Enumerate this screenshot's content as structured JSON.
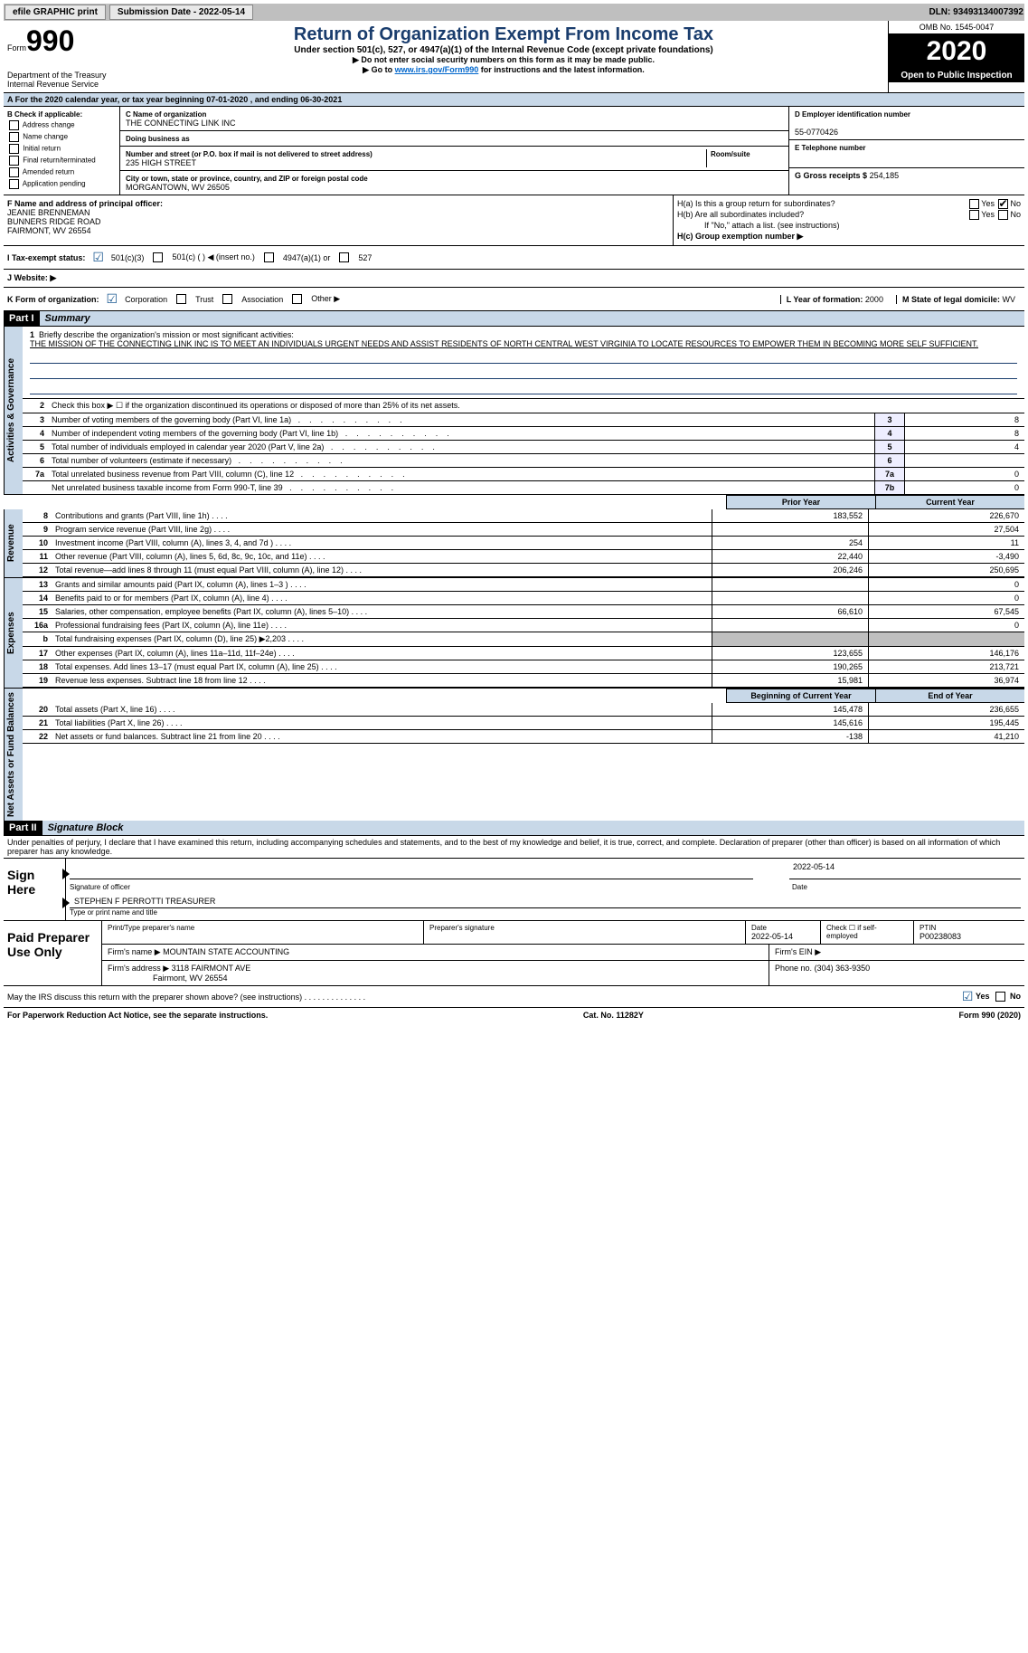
{
  "topbar": {
    "efile": "efile GRAPHIC print",
    "submission_label": "Submission Date - 2022-05-14",
    "dln_label": "DLN: 93493134007392"
  },
  "header": {
    "form_prefix": "Form",
    "form_number": "990",
    "title": "Return of Organization Exempt From Income Tax",
    "subtitle": "Under section 501(c), 527, or 4947(a)(1) of the Internal Revenue Code (except private foundations)",
    "line1": "▶ Do not enter social security numbers on this form as it may be made public.",
    "line2_pre": "▶ Go to ",
    "line2_link": "www.irs.gov/Form990",
    "line2_post": " for instructions and the latest information.",
    "dept": "Department of the Treasury\nInternal Revenue Service",
    "omb": "OMB No. 1545-0047",
    "year": "2020",
    "inspection": "Open to Public Inspection"
  },
  "section_a": "A For the 2020 calendar year, or tax year beginning 07-01-2020   , and ending 06-30-2021",
  "section_b": {
    "label": "B Check if applicable:",
    "opts": [
      "Address change",
      "Name change",
      "Initial return",
      "Final return/terminated",
      "Amended return",
      "Application pending"
    ]
  },
  "section_c": {
    "label": "C Name of organization",
    "name": "THE CONNECTING LINK INC",
    "dba_label": "Doing business as",
    "addr_label": "Number and street (or P.O. box if mail is not delivered to street address)",
    "room_label": "Room/suite",
    "addr": "235 HIGH STREET",
    "city_label": "City or town, state or province, country, and ZIP or foreign postal code",
    "city": "MORGANTOWN, WV  26505"
  },
  "section_d": {
    "label": "D Employer identification number",
    "value": "55-0770426"
  },
  "section_e": {
    "label": "E Telephone number",
    "value": ""
  },
  "section_g": {
    "label": "G Gross receipts $",
    "value": "254,185"
  },
  "section_f": {
    "label": "F Name and address of principal officer:",
    "name": "JEANIE BRENNEMAN",
    "addr1": "BUNNERS RIDGE ROAD",
    "addr2": "FAIRMONT, WV  26554"
  },
  "section_h": {
    "ha": "H(a)  Is this a group return for subordinates?",
    "hb": "H(b)  Are all subordinates included?",
    "hb_note": "If \"No,\" attach a list. (see instructions)",
    "hc": "H(c)  Group exemption number ▶",
    "yes": "Yes",
    "no": "No"
  },
  "section_i": {
    "label": "I    Tax-exempt status:",
    "o1": "501(c)(3)",
    "o2": "501(c) (  ) ◀ (insert no.)",
    "o3": "4947(a)(1) or",
    "o4": "527"
  },
  "section_j": {
    "label": "J    Website: ▶"
  },
  "section_k": {
    "label": "K Form of organization:",
    "o1": "Corporation",
    "o2": "Trust",
    "o3": "Association",
    "o4": "Other ▶"
  },
  "section_l": {
    "label": "L Year of formation:",
    "value": "2000"
  },
  "section_m": {
    "label": "M State of legal domicile:",
    "value": "WV"
  },
  "part1": {
    "label": "Part I",
    "title": "Summary"
  },
  "summary": {
    "line1_label": "Briefly describe the organization's mission or most significant activities:",
    "mission": "THE MISSION OF THE CONNECTING LINK INC IS TO MEET AN INDIVIDUALS URGENT NEEDS AND ASSIST RESIDENTS OF NORTH CENTRAL WEST VIRGINIA TO LOCATE RESOURCES TO EMPOWER THEM IN BECOMING MORE SELF SUFFICIENT.",
    "line2": "Check this box ▶ ☐  if the organization discontinued its operations or disposed of more than 25% of its net assets.",
    "gov_rows": [
      {
        "n": "3",
        "label": "Number of voting members of the governing body (Part VI, line 1a)",
        "box": "3",
        "val": "8"
      },
      {
        "n": "4",
        "label": "Number of independent voting members of the governing body (Part VI, line 1b)",
        "box": "4",
        "val": "8"
      },
      {
        "n": "5",
        "label": "Total number of individuals employed in calendar year 2020 (Part V, line 2a)",
        "box": "5",
        "val": "4"
      },
      {
        "n": "6",
        "label": "Total number of volunteers (estimate if necessary)",
        "box": "6",
        "val": ""
      },
      {
        "n": "7a",
        "label": "Total unrelated business revenue from Part VIII, column (C), line 12",
        "box": "7a",
        "val": "0"
      },
      {
        "n": "",
        "label": "Net unrelated business taxable income from Form 990-T, line 39",
        "box": "7b",
        "val": "0"
      }
    ],
    "col_prior": "Prior Year",
    "col_current": "Current Year",
    "rev_rows": [
      {
        "n": "8",
        "label": "Contributions and grants (Part VIII, line 1h)",
        "c1": "183,552",
        "c2": "226,670"
      },
      {
        "n": "9",
        "label": "Program service revenue (Part VIII, line 2g)",
        "c1": "",
        "c2": "27,504"
      },
      {
        "n": "10",
        "label": "Investment income (Part VIII, column (A), lines 3, 4, and 7d )",
        "c1": "254",
        "c2": "11"
      },
      {
        "n": "11",
        "label": "Other revenue (Part VIII, column (A), lines 5, 6d, 8c, 9c, 10c, and 11e)",
        "c1": "22,440",
        "c2": "-3,490"
      },
      {
        "n": "12",
        "label": "Total revenue—add lines 8 through 11 (must equal Part VIII, column (A), line 12)",
        "c1": "206,246",
        "c2": "250,695"
      }
    ],
    "exp_rows": [
      {
        "n": "13",
        "label": "Grants and similar amounts paid (Part IX, column (A), lines 1–3 )",
        "c1": "",
        "c2": "0"
      },
      {
        "n": "14",
        "label": "Benefits paid to or for members (Part IX, column (A), line 4)",
        "c1": "",
        "c2": "0"
      },
      {
        "n": "15",
        "label": "Salaries, other compensation, employee benefits (Part IX, column (A), lines 5–10)",
        "c1": "66,610",
        "c2": "67,545"
      },
      {
        "n": "16a",
        "label": "Professional fundraising fees (Part IX, column (A), line 11e)",
        "c1": "",
        "c2": "0"
      },
      {
        "n": "b",
        "label": "Total fundraising expenses (Part IX, column (D), line 25) ▶2,203",
        "c1": "",
        "c2": "",
        "shaded": true
      },
      {
        "n": "17",
        "label": "Other expenses (Part IX, column (A), lines 11a–11d, 11f–24e)",
        "c1": "123,655",
        "c2": "146,176"
      },
      {
        "n": "18",
        "label": "Total expenses. Add lines 13–17 (must equal Part IX, column (A), line 25)",
        "c1": "190,265",
        "c2": "213,721"
      },
      {
        "n": "19",
        "label": "Revenue less expenses. Subtract line 18 from line 12",
        "c1": "15,981",
        "c2": "36,974"
      }
    ],
    "col_begin": "Beginning of Current Year",
    "col_end": "End of Year",
    "na_rows": [
      {
        "n": "20",
        "label": "Total assets (Part X, line 16)",
        "c1": "145,478",
        "c2": "236,655"
      },
      {
        "n": "21",
        "label": "Total liabilities (Part X, line 26)",
        "c1": "145,616",
        "c2": "195,445"
      },
      {
        "n": "22",
        "label": "Net assets or fund balances. Subtract line 21 from line 20",
        "c1": "-138",
        "c2": "41,210"
      }
    ]
  },
  "tabs": {
    "gov": "Activities & Governance",
    "rev": "Revenue",
    "exp": "Expenses",
    "na": "Net Assets or Fund Balances",
    "b_marker": "b"
  },
  "part2": {
    "label": "Part II",
    "title": "Signature Block"
  },
  "penalty": "Under penalties of perjury, I declare that I have examined this return, including accompanying schedules and statements, and to the best of my knowledge and belief, it is true, correct, and complete. Declaration of preparer (other than officer) is based on all information of which preparer has any knowledge.",
  "sign": {
    "here": "Sign Here",
    "sig_label": "Signature of officer",
    "date_label": "Date",
    "date_val": "2022-05-14",
    "type_label": "Type or print name and title",
    "type_val": "STEPHEN F PERROTTI TREASURER"
  },
  "paid": {
    "here": "Paid Preparer Use Only",
    "col_print": "Print/Type preparer's name",
    "col_sig": "Preparer's signature",
    "col_date": "Date",
    "date_val": "2022-05-14",
    "col_check": "Check ☐ if self-employed",
    "col_ptin": "PTIN",
    "ptin_val": "P00238083",
    "firm_name_label": "Firm's name   ▶",
    "firm_name": "MOUNTAIN STATE ACCOUNTING",
    "firm_ein_label": "Firm's EIN ▶",
    "firm_addr_label": "Firm's address ▶",
    "firm_addr": "3118 FAIRMONT AVE",
    "firm_city": "Fairmont, WV  26554",
    "phone_label": "Phone no.",
    "phone": "(304) 363-9350"
  },
  "discuss": {
    "q": "May the IRS discuss this return with the preparer shown above? (see instructions)   .    .    .    .    .    .    .    .    .    .    .    .    .    .",
    "yes": "Yes",
    "no": "No"
  },
  "footer": {
    "left": "For Paperwork Reduction Act Notice, see the separate instructions.",
    "mid": "Cat. No. 11282Y",
    "right": "Form 990 (2020)"
  }
}
